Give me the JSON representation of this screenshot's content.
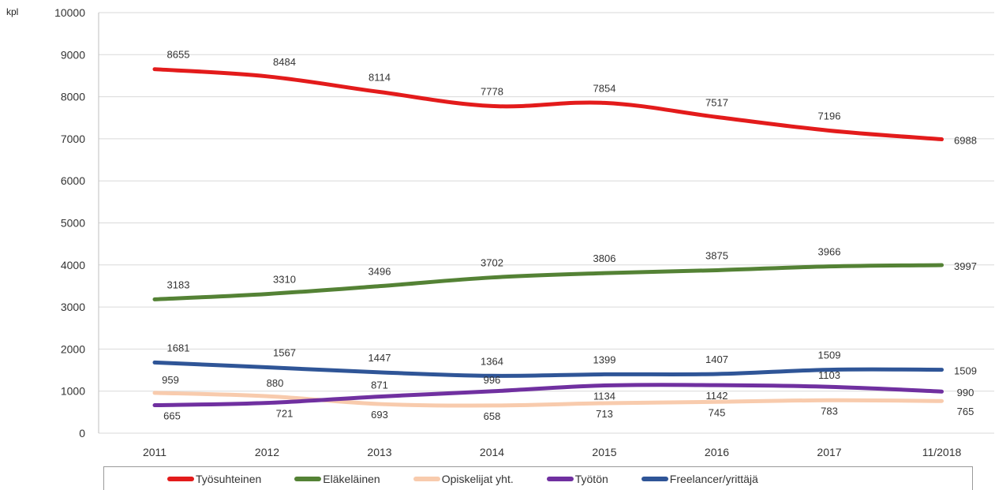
{
  "chart_data": {
    "type": "line",
    "unit_label": "kpl",
    "categories": [
      "2011",
      "2012",
      "2013",
      "2014",
      "2015",
      "2016",
      "2017",
      "11/2018"
    ],
    "ylim": [
      0,
      10000
    ],
    "yticks": [
      "0",
      "1000",
      "2000",
      "3000",
      "4000",
      "5000",
      "6000",
      "7000",
      "8000",
      "9000",
      "10000"
    ],
    "grid": true,
    "legend_position": "bottom",
    "series": [
      {
        "name": "Työsuhteinen",
        "color": "#e31b1b",
        "values": [
          8655,
          8484,
          8114,
          7778,
          7854,
          7517,
          7196,
          6988
        ]
      },
      {
        "name": "Eläkeläinen",
        "color": "#548235",
        "values": [
          3183,
          3310,
          3496,
          3702,
          3806,
          3875,
          3966,
          3997
        ]
      },
      {
        "name": "Opiskelijat yht.",
        "color": "#f8cbad",
        "values": [
          959,
          880,
          693,
          658,
          713,
          745,
          783,
          765
        ]
      },
      {
        "name": "Työtön",
        "color": "#7030a0",
        "values": [
          665,
          721,
          871,
          996,
          1134,
          1142,
          1103,
          990
        ]
      },
      {
        "name": "Freelancer/yrittäjä",
        "color": "#2f5597",
        "values": [
          1681,
          1567,
          1447,
          1364,
          1399,
          1407,
          1509,
          1509
        ]
      }
    ]
  }
}
